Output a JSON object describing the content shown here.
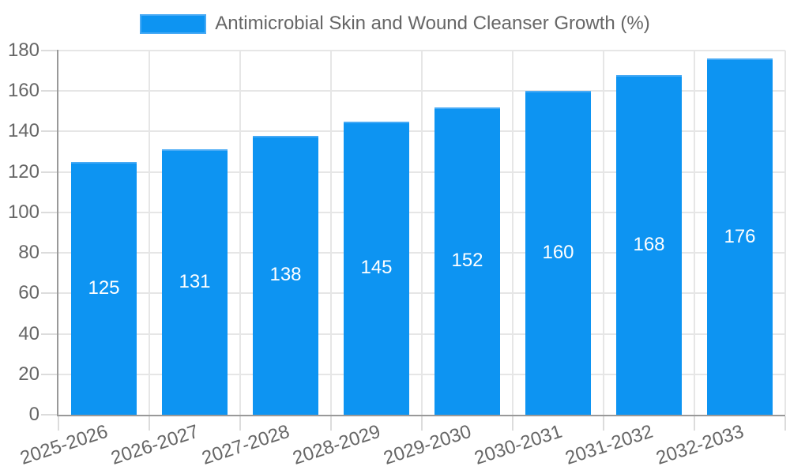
{
  "legend": {
    "label": "Antimicrobial Skin and Wound Cleanser Growth (%)"
  },
  "chart_data": {
    "type": "bar",
    "title": "Antimicrobial Skin and Wound Cleanser Growth (%)",
    "categories": [
      "2025-2026",
      "2026-2027",
      "2027-2028",
      "2028-2029",
      "2029-2030",
      "2030-2031",
      "2031-2032",
      "2032-2033"
    ],
    "values": [
      125,
      131,
      138,
      145,
      152,
      160,
      168,
      176
    ],
    "value_labels": [
      "125",
      "131",
      "138",
      "145",
      "152",
      "160",
      "168",
      "176"
    ],
    "xlabel": "",
    "ylabel": "",
    "ylim": [
      0,
      180
    ],
    "yticks": [
      0,
      20,
      40,
      60,
      80,
      100,
      120,
      140,
      160,
      180
    ],
    "grid": true,
    "legend_position": "top",
    "colors": {
      "bar_fill": "#0d94f2",
      "bar_border": "#47aaf5",
      "bar_value_text": "#ffffff",
      "axis_text": "#666666",
      "gridline": "#e6e6e6",
      "tick": "#dcdcdc",
      "axis_line": "#999999",
      "background": "#ffffff"
    }
  }
}
